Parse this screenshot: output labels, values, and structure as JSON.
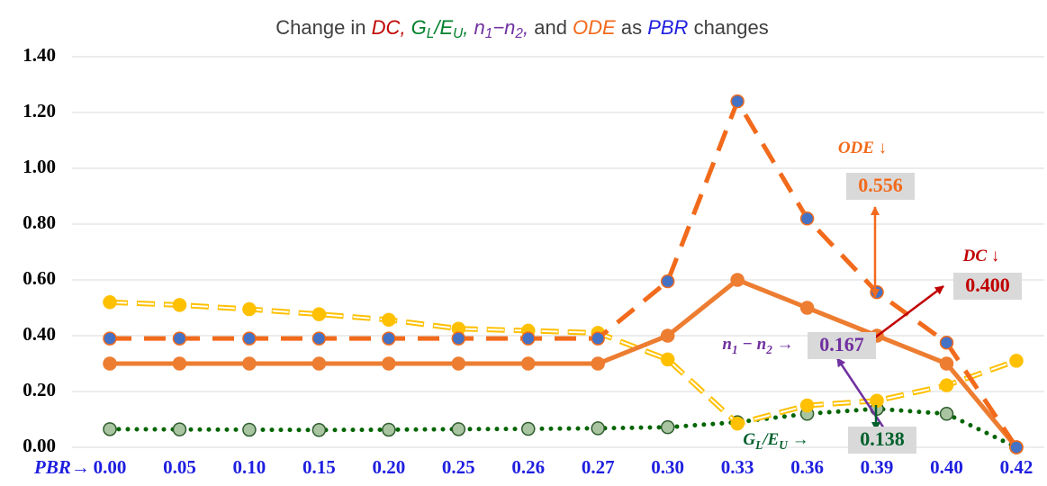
{
  "chart_data": {
    "type": "line",
    "title_parts": [
      {
        "text": "Change in ",
        "color": "#404040"
      },
      {
        "text": "DC",
        "color": "#c00000",
        "italic": true
      },
      {
        "text": ", ",
        "color": "#c00000",
        "italic": true
      },
      {
        "text": "G",
        "color": "#00802b",
        "italic": true
      },
      {
        "text": "L",
        "color": "#00802b",
        "italic": true,
        "sub": true
      },
      {
        "text": "/E",
        "color": "#00802b",
        "italic": true
      },
      {
        "text": "U",
        "color": "#00802b",
        "italic": true,
        "sub": true
      },
      {
        "text": ", ",
        "color": "#00802b",
        "italic": true
      },
      {
        "text": "n",
        "color": "#7030a0",
        "italic": true
      },
      {
        "text": "1",
        "color": "#7030a0",
        "italic": true,
        "sub": true
      },
      {
        "text": "−n",
        "color": "#7030a0",
        "italic": true
      },
      {
        "text": "2",
        "color": "#7030a0",
        "italic": true,
        "sub": true
      },
      {
        "text": ", ",
        "color": "#7030a0",
        "italic": true
      },
      {
        "text": "and ",
        "color": "#404040"
      },
      {
        "text": "ODE",
        "color": "#f26a1b",
        "italic": true
      },
      {
        "text": " as ",
        "color": "#404040"
      },
      {
        "text": "PBR",
        "color": "#1f1fe0",
        "italic": true
      },
      {
        "text": " changes",
        "color": "#404040"
      }
    ],
    "x_label": "PBR→",
    "categories": [
      "0.00",
      "0.05",
      "0.10",
      "0.15",
      "0.20",
      "0.25",
      "0.26",
      "0.27",
      "0.30",
      "0.33",
      "0.36",
      "0.39",
      "0.40",
      "0.42"
    ],
    "ylim": [
      0,
      1.4
    ],
    "yticks": [
      {
        "value": 0,
        "label": "0.00"
      },
      {
        "value": 0.2,
        "label": "0.20"
      },
      {
        "value": 0.4,
        "label": "0.40"
      },
      {
        "value": 0.6,
        "label": "0.60"
      },
      {
        "value": 0.8,
        "label": "0.80"
      },
      {
        "value": 1.0,
        "label": "1.00"
      },
      {
        "value": 1.2,
        "label": "1.20"
      },
      {
        "value": 1.4,
        "label": "1.40"
      }
    ],
    "grid": true,
    "series": [
      {
        "color": "#f26a1b",
        "marker_color": "#4472c4",
        "line_style": "dashed",
        "values": [
          0.39,
          0.39,
          0.39,
          0.39,
          0.39,
          0.39,
          0.39,
          0.39,
          0.595,
          1.24,
          0.82,
          0.556,
          0.375,
          0.0
        ],
        "value_labels": [
          null,
          null,
          null,
          null,
          null,
          null,
          null,
          null,
          null,
          null,
          null,
          "0.556",
          null,
          null
        ]
      },
      {
        "color": "#ed7d31",
        "marker_color": "#ed7d31",
        "line_style": "solid",
        "values": [
          0.3,
          0.3,
          0.3,
          0.3,
          0.3,
          0.3,
          0.3,
          0.3,
          0.4,
          0.6,
          0.5,
          0.4,
          0.3,
          0.0
        ],
        "value_labels": [
          null,
          null,
          null,
          null,
          null,
          null,
          null,
          null,
          null,
          null,
          null,
          "0.400",
          null,
          null
        ]
      },
      {
        "color": "#ffc000",
        "marker_color": "#ffc000",
        "line_style": "hollow-dashed",
        "values": [
          0.52,
          0.51,
          0.495,
          0.477,
          0.457,
          0.425,
          0.418,
          0.41,
          0.315,
          0.085,
          0.15,
          0.167,
          0.222,
          0.31
        ],
        "value_labels": [
          null,
          null,
          null,
          null,
          null,
          null,
          null,
          null,
          null,
          null,
          null,
          "0.167",
          null,
          null
        ]
      },
      {
        "color": "#006400",
        "marker_color": "#a9c4a0",
        "line_style": "dotted",
        "values": [
          0.065,
          0.064,
          0.063,
          0.062,
          0.063,
          0.065,
          0.066,
          0.068,
          0.072,
          0.09,
          0.12,
          0.138,
          0.12,
          0.0
        ],
        "value_labels": [
          null,
          null,
          null,
          null,
          null,
          null,
          null,
          null,
          null,
          null,
          null,
          "0.138",
          null,
          null
        ]
      }
    ],
    "annotations": [
      {
        "color": "#f26a1b",
        "parts": [
          {
            "text": "ODE ↓"
          }
        ]
      },
      {
        "color": "#c00000",
        "parts": [
          {
            "text": "DC ↓"
          }
        ]
      },
      {
        "color": "#7030a0",
        "parts": [
          {
            "text": "n"
          },
          {
            "text": "1",
            "sub": true
          },
          {
            "text": " − n"
          },
          {
            "text": "2",
            "sub": true
          },
          {
            "text": " →"
          }
        ]
      },
      {
        "color": "#00602b",
        "parts": [
          {
            "text": "G"
          },
          {
            "text": "L",
            "sub": true
          },
          {
            "text": "/E"
          },
          {
            "text": "U",
            "sub": true
          },
          {
            "text": " →"
          }
        ]
      }
    ]
  }
}
